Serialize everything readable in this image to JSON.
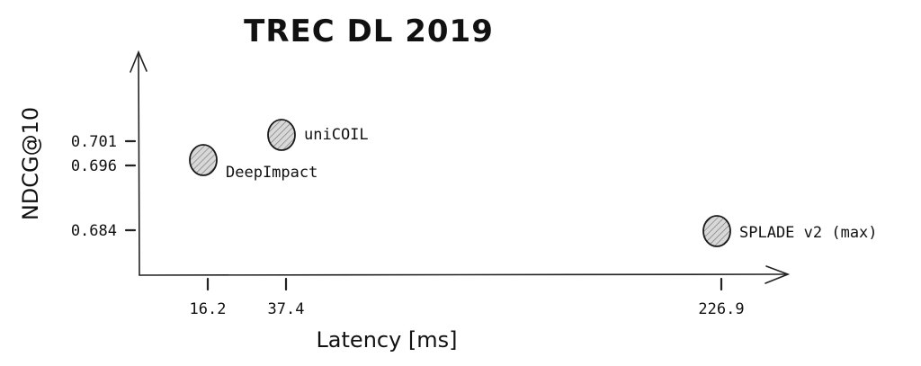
{
  "chart_data": {
    "type": "scatter",
    "title": "TREC DL 2019",
    "xlabel": "Latency [ms]",
    "ylabel": "NDCG@10",
    "xticks": [
      "16.2",
      "37.4",
      "226.9"
    ],
    "yticks": [
      "0.701",
      "0.696",
      "0.684"
    ],
    "grid": false,
    "points": [
      {
        "label": "DeepImpact",
        "x": 16.2,
        "y": 0.696
      },
      {
        "label": "uniCOIL",
        "x": 37.4,
        "y": 0.701
      },
      {
        "label": "SPLADE v2 (max)",
        "x": 226.9,
        "y": 0.684
      }
    ]
  }
}
